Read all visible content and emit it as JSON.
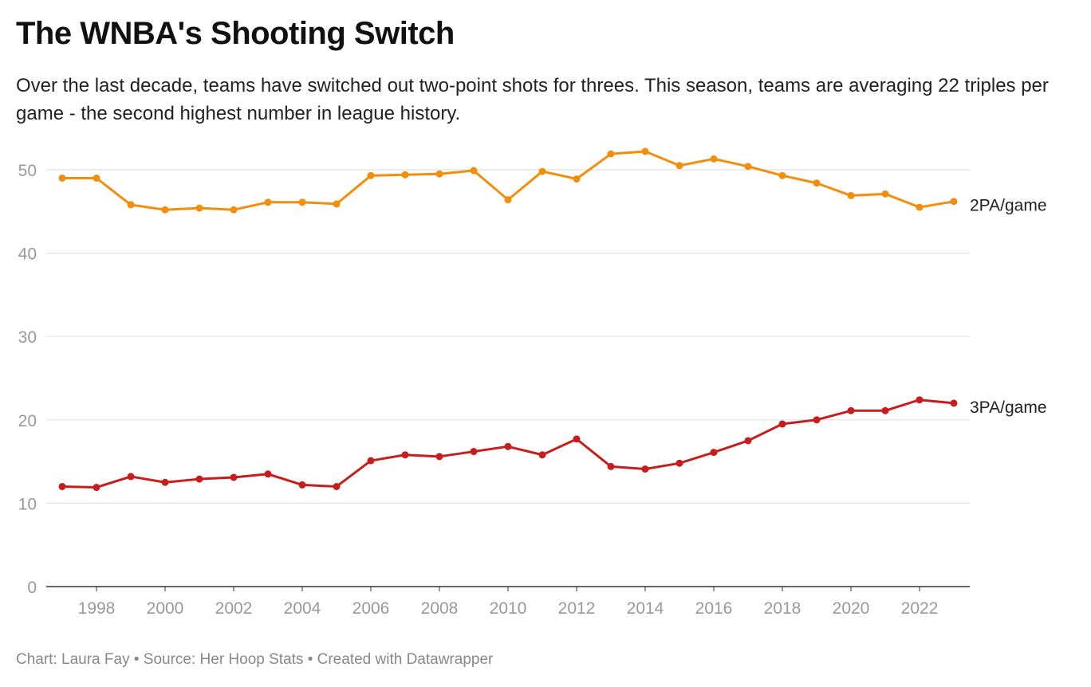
{
  "header": {
    "title": "The WNBA's Shooting Switch",
    "subtitle": "Over the last decade, teams have switched out two-point shots for threes. This season, teams are averaging 22 triples per game - the second highest number in league history."
  },
  "footer": {
    "text": "Chart: Laura Fay • Source: Her Hoop Stats • Created with Datawrapper"
  },
  "chart_data": {
    "type": "line",
    "title": "The WNBA's Shooting Switch",
    "xlabel": "",
    "ylabel": "",
    "ylim": [
      0,
      52
    ],
    "xlim": [
      1997,
      2023
    ],
    "yticks": [
      0,
      10,
      20,
      30,
      40,
      50
    ],
    "xticks": [
      1998,
      2000,
      2002,
      2004,
      2006,
      2008,
      2010,
      2012,
      2014,
      2016,
      2018,
      2020,
      2022
    ],
    "grid": true,
    "x": [
      1997,
      1998,
      1999,
      2000,
      2001,
      2002,
      2003,
      2004,
      2005,
      2006,
      2007,
      2008,
      2009,
      2010,
      2011,
      2012,
      2013,
      2014,
      2015,
      2016,
      2017,
      2018,
      2019,
      2020,
      2021,
      2022,
      2023
    ],
    "series": [
      {
        "name": "2PA/game",
        "color": "#f28e0c",
        "values": [
          49.0,
          49.0,
          45.8,
          45.2,
          45.4,
          45.2,
          46.1,
          46.1,
          45.9,
          49.3,
          49.4,
          49.5,
          49.9,
          46.4,
          49.8,
          48.9,
          51.9,
          52.2,
          50.5,
          51.3,
          50.4,
          49.3,
          48.4,
          46.9,
          47.1,
          45.5,
          46.2
        ]
      },
      {
        "name": "3PA/game",
        "color": "#c71e1d",
        "values": [
          12.0,
          11.9,
          13.2,
          12.5,
          12.9,
          13.1,
          13.5,
          12.2,
          12.0,
          15.1,
          15.8,
          15.6,
          16.2,
          16.8,
          15.8,
          17.7,
          14.4,
          14.1,
          14.8,
          16.1,
          17.5,
          19.5,
          20.0,
          21.1,
          21.1,
          22.4,
          22.0
        ]
      }
    ]
  }
}
